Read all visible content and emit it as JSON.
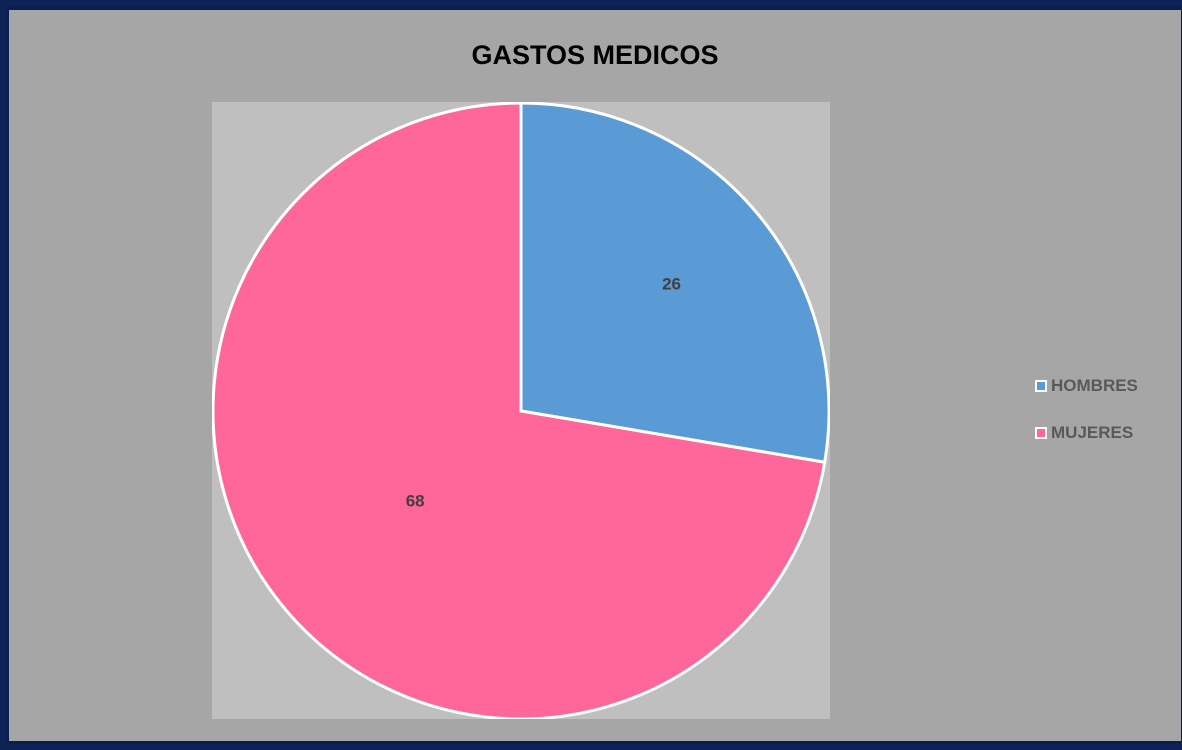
{
  "chart_data": {
    "type": "pie",
    "title": "GASTOS MEDICOS",
    "categories": [
      "HOMBRES",
      "MUJERES"
    ],
    "values": [
      26,
      68
    ],
    "colors": [
      "#5b9bd5",
      "#ff6699"
    ],
    "legend_position": "right",
    "start_angle": "12 o'clock, clockwise"
  },
  "colors": {
    "frame_border": "#0b1f4e",
    "chart_background": "#a6a6a6",
    "plot_background": "#bfbfbf",
    "slice_border": "#ffffff"
  }
}
